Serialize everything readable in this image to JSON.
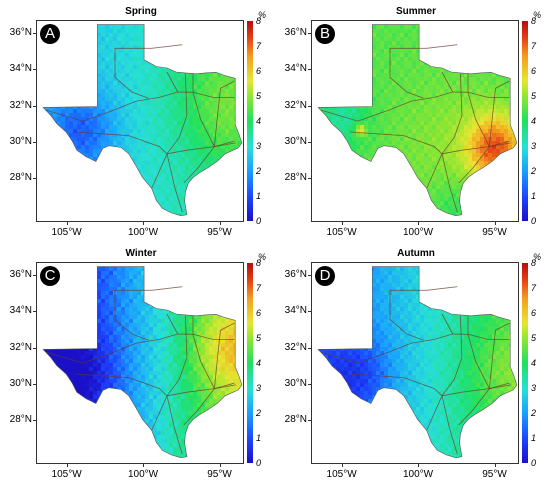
{
  "panels": [
    {
      "title": "Spring",
      "letter": "A",
      "field": "spring"
    },
    {
      "title": "Summer",
      "letter": "B",
      "field": "summer"
    },
    {
      "title": "Winter",
      "letter": "C",
      "field": "winter"
    },
    {
      "title": "Autumn",
      "letter": "D",
      "field": "autumn"
    }
  ],
  "lat_labels": [
    "36°N",
    "34°N",
    "32°N",
    "30°N",
    "28°N"
  ],
  "lat_values": [
    36,
    34,
    32,
    30,
    28
  ],
  "lon_labels": [
    "105°W",
    "100°W",
    "95°W"
  ],
  "lon_values": [
    -105,
    -100,
    -95
  ],
  "colorbar": {
    "unit": "%",
    "tick_labels": [
      "0",
      "1",
      "2",
      "3",
      "4",
      "5",
      "6",
      "7",
      "8"
    ],
    "min": 0,
    "max": 8,
    "colors": [
      "#1a10c8",
      "#1c46ff",
      "#1aa0ff",
      "#28e0d6",
      "#1fe060",
      "#8ee632",
      "#e6e632",
      "#f5a020",
      "#e43a14",
      "#b01010"
    ]
  },
  "map_extent": {
    "lon_min": -107,
    "lon_max": -93.4,
    "lat_min": 25.6,
    "lat_max": 36.7
  }
}
